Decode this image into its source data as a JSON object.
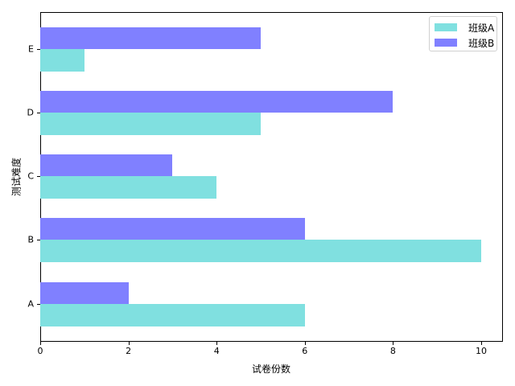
{
  "chart_data": {
    "type": "bar",
    "orientation": "horizontal",
    "categories": [
      "A",
      "B",
      "C",
      "D",
      "E"
    ],
    "series": [
      {
        "name": "班级A",
        "color": "#80e0e0",
        "values": [
          6,
          10,
          4,
          5,
          1
        ]
      },
      {
        "name": "班级B",
        "color": "#8080ff",
        "values": [
          2,
          6,
          3,
          8,
          5
        ]
      }
    ],
    "title": "",
    "xlabel": "试卷份数",
    "ylabel": "测试难度",
    "xlim": [
      0,
      10.5
    ],
    "xticks": [
      "0",
      "2",
      "4",
      "6",
      "8",
      "10"
    ],
    "grid": false,
    "legend_position": "upper right"
  },
  "legend": {
    "items": [
      {
        "label": "班级A",
        "color": "#80e0e0"
      },
      {
        "label": "班级B",
        "color": "#8080ff"
      }
    ]
  }
}
